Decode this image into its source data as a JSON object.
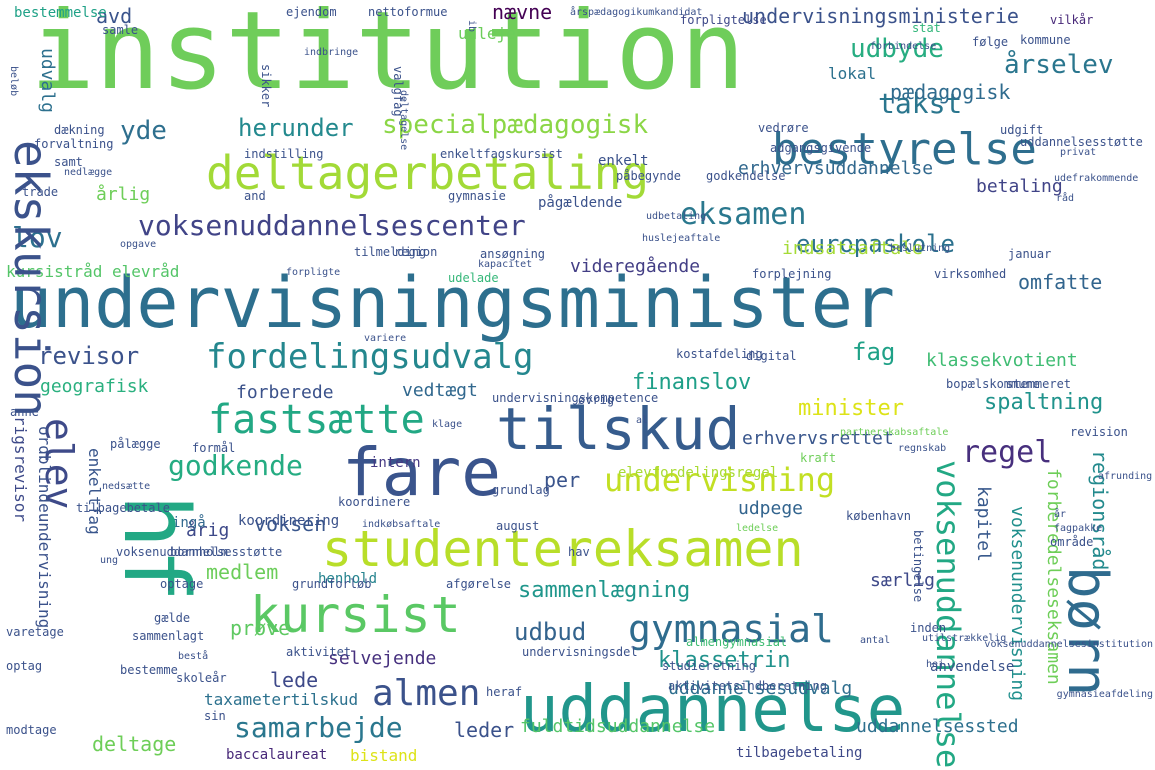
{
  "words": [
    {
      "text": "institution",
      "color": "#6fcd5a"
    },
    {
      "text": "undervisningsminister",
      "color": "#2d6f8e"
    },
    {
      "text": "uddannelse",
      "color": "#21968b"
    },
    {
      "text": "fare",
      "color": "#3a548c"
    },
    {
      "text": "tilskud",
      "color": "#365c8d"
    },
    {
      "text": "studentereksamen",
      "color": "#b8de29"
    },
    {
      "text": "deltagerbetaling",
      "color": "#a2da37"
    },
    {
      "text": "bestyrelse",
      "color": "#2e6e8e"
    },
    {
      "text": "kursist",
      "color": "#5ac864"
    },
    {
      "text": "fastsætte",
      "color": "#22a884"
    },
    {
      "text": "gymnasial",
      "color": "#2f6c8e"
    },
    {
      "text": "fordelingsudvalg",
      "color": "#24878e"
    },
    {
      "text": "voksenuddannelsescenter",
      "color": "#414487"
    },
    {
      "text": "specialpædagogisk",
      "color": "#8bd646"
    },
    {
      "text": "undervisning",
      "color": "#c2df23"
    },
    {
      "text": "almen",
      "color": "#3b528b"
    },
    {
      "text": "eksamen",
      "color": "#2a788e"
    },
    {
      "text": "europaskole",
      "color": "#2c718e"
    },
    {
      "text": "udbyde",
      "color": "#27ad81"
    },
    {
      "text": "årselev",
      "color": "#2a768e"
    },
    {
      "text": "herunder",
      "color": "#23898e"
    },
    {
      "text": "takst",
      "color": "#2a768e"
    },
    {
      "text": "godkende",
      "color": "#25ac82"
    },
    {
      "text": "lov",
      "color": "#2d708e"
    },
    {
      "text": "yde",
      "color": "#2e6f8e"
    },
    {
      "text": "regel",
      "color": "#472f7d"
    },
    {
      "text": "samarbejde",
      "color": "#2a778e"
    },
    {
      "text": "minister",
      "color": "#dde318"
    },
    {
      "text": "finanslov",
      "color": "#1f9f88"
    },
    {
      "text": "revisor",
      "color": "#3b528b"
    },
    {
      "text": "fag",
      "color": "#1fa187"
    },
    {
      "text": "spaltning",
      "color": "#20938c"
    },
    {
      "text": "klassetrin",
      "color": "#20928c"
    },
    {
      "text": "sammenlægning",
      "color": "#1f968b"
    },
    {
      "text": "udbud",
      "color": "#33638d"
    },
    {
      "text": "klassekvotient",
      "color": "#3fbc73"
    },
    {
      "text": "erhvervsrettet",
      "color": "#39568c"
    },
    {
      "text": "geografisk",
      "color": "#2ab07f"
    },
    {
      "text": "undervisningsministerie",
      "color": "#3b528b"
    },
    {
      "text": "erhvervsuddannelse",
      "color": "#31688e"
    },
    {
      "text": "pædagogisk",
      "color": "#2f6b8e"
    },
    {
      "text": "betaling",
      "color": "#414487"
    },
    {
      "text": "indsatsaftale",
      "color": "#a5db36"
    },
    {
      "text": "omfatte",
      "color": "#32658e"
    },
    {
      "text": "videregående",
      "color": "#433e85"
    },
    {
      "text": "kursistråd elevråd",
      "color": "#54c568"
    },
    {
      "text": "vedtægt",
      "color": "#31688e"
    },
    {
      "text": "forberede",
      "color": "#3b528b"
    },
    {
      "text": "medlem",
      "color": "#6ccd5a"
    },
    {
      "text": "voksen",
      "color": "#39568c"
    },
    {
      "text": "årig",
      "color": "#3e4989"
    },
    {
      "text": "per",
      "color": "#3a548c"
    },
    {
      "text": "udpege",
      "color": "#32648e"
    },
    {
      "text": "prøve",
      "color": "#5ec962"
    },
    {
      "text": "selvejende",
      "color": "#46307e"
    },
    {
      "text": "lede",
      "color": "#3e4989"
    },
    {
      "text": "leder",
      "color": "#3b528b"
    },
    {
      "text": "deltage",
      "color": "#6ece58"
    },
    {
      "text": "uddannelsesudvalg",
      "color": "#2e6e8e"
    },
    {
      "text": "fuldtidsuddannelse",
      "color": "#54c568"
    },
    {
      "text": "uddannelsessted",
      "color": "#2d708e"
    },
    {
      "text": "særlig",
      "color": "#3e4989"
    },
    {
      "text": "elevfordelingsregel",
      "color": "#a8db34"
    },
    {
      "text": "ingå",
      "color": "#31688e"
    },
    {
      "text": "koordinering",
      "color": "#3b528b"
    },
    {
      "text": "henhold",
      "color": "#25838e"
    },
    {
      "text": "intern",
      "color": "#443983"
    },
    {
      "text": "udelade",
      "color": "#35b779"
    },
    {
      "text": "region",
      "color": "#3b528b"
    },
    {
      "text": "gymnasie",
      "color": "#3b528b"
    },
    {
      "text": "årlig",
      "color": "#6ece58"
    },
    {
      "text": "udvalg",
      "color": "#2d708e"
    },
    {
      "text": "lokal",
      "color": "#2c718e"
    },
    {
      "text": "nævne",
      "color": "#440154"
    },
    {
      "text": "udleje",
      "color": "#6ccd5a"
    },
    {
      "text": "avd",
      "color": "#3a548c"
    },
    {
      "text": "bestemmelse",
      "color": "#1fa187"
    },
    {
      "text": "ejendom",
      "color": "#3b528b"
    },
    {
      "text": "vilkår",
      "color": "#482979"
    },
    {
      "text": "følge",
      "color": "#3b528b"
    },
    {
      "text": "stat",
      "color": "#32b67a"
    },
    {
      "text": "forpligtelse",
      "color": "#3e4989"
    },
    {
      "text": "kommune",
      "color": "#3b528b"
    },
    {
      "text": "ekskursion",
      "color": "#3b528b"
    },
    {
      "text": "hf",
      "color": "#22a884"
    },
    {
      "text": "børn",
      "color": "#2f6b8e"
    },
    {
      "text": "elev",
      "color": "#3e4a89"
    },
    {
      "text": "voksenuddannelse",
      "color": "#22a884"
    },
    {
      "text": "regionsråd",
      "color": "#238a8d"
    },
    {
      "text": "forberedelseseksamen",
      "color": "#6ece58"
    },
    {
      "text": "voksenundervisning",
      "color": "#21908d"
    },
    {
      "text": "kapitel",
      "color": "#38598c"
    },
    {
      "text": "rigsrevisor",
      "color": "#3e4a89"
    },
    {
      "text": "ordblindeundervisning",
      "color": "#3b528b"
    },
    {
      "text": "enkeltfag",
      "color": "#39568c"
    },
    {
      "text": "taxametertilskud",
      "color": "#2c718e"
    },
    {
      "text": "bistand",
      "color": "#dde318"
    },
    {
      "text": "baccalaureat",
      "color": "#482979"
    },
    {
      "text": "tilbagebetaling",
      "color": "#3e4989"
    },
    {
      "text": "anvendelse",
      "color": "#3b528b"
    },
    {
      "text": "studieretning",
      "color": "#3b528b"
    },
    {
      "text": "aktivitetsindberetning",
      "color": "#3b528b"
    },
    {
      "text": "almengymnasial",
      "color": "#3fbc73"
    },
    {
      "text": "inden",
      "color": "#3b528b"
    },
    {
      "text": "gælde",
      "color": "#3b528b"
    },
    {
      "text": "optage",
      "color": "#3b528b"
    },
    {
      "text": "grundforløb",
      "color": "#3b528b"
    },
    {
      "text": "afgørelse",
      "color": "#3b528b"
    },
    {
      "text": "skoleår",
      "color": "#3b528b"
    },
    {
      "text": "koordinere",
      "color": "#3b528b"
    },
    {
      "text": "tilbagebetale",
      "color": "#3b528b"
    },
    {
      "text": "formål",
      "color": "#3b528b"
    },
    {
      "text": "grundlag",
      "color": "#3b528b"
    },
    {
      "text": "august",
      "color": "#3b528b"
    },
    {
      "text": "hav",
      "color": "#3b528b"
    },
    {
      "text": "københavn",
      "color": "#3b528b"
    },
    {
      "text": "kostafdeling",
      "color": "#3b528b"
    },
    {
      "text": "digital",
      "color": "#3b528b"
    },
    {
      "text": "stemmeret",
      "color": "#3b528b"
    },
    {
      "text": "bopælskommune",
      "color": "#3b528b"
    },
    {
      "text": "øvrig",
      "color": "#3b528b"
    },
    {
      "text": "undervisningskompetence",
      "color": "#3b528b"
    },
    {
      "text": "revision",
      "color": "#3b528b"
    },
    {
      "text": "regnskab",
      "color": "#3b528b"
    },
    {
      "text": "kraft",
      "color": "#6ece58"
    },
    {
      "text": "partnerskabsaftale",
      "color": "#6ece58"
    },
    {
      "text": "afrunding",
      "color": "#3b528b"
    },
    {
      "text": "år",
      "color": "#3b528b"
    },
    {
      "text": "område",
      "color": "#3b528b"
    },
    {
      "text": "fagpakke",
      "color": "#3b528b"
    },
    {
      "text": "ledelse",
      "color": "#6ece58"
    },
    {
      "text": "tilmelding",
      "color": "#3b528b"
    },
    {
      "text": "ansøgning",
      "color": "#3b528b"
    },
    {
      "text": "kapacitet",
      "color": "#3b528b"
    },
    {
      "text": "forplejning",
      "color": "#3b528b"
    },
    {
      "text": "virksomhed",
      "color": "#3b528b"
    },
    {
      "text": "januar",
      "color": "#3b528b"
    },
    {
      "text": "forpligte",
      "color": "#3b528b"
    },
    {
      "text": "huslejeaftale",
      "color": "#3b528b"
    },
    {
      "text": "beslutning",
      "color": "#3b528b"
    },
    {
      "text": "bornholm",
      "color": "#3b528b"
    },
    {
      "text": "indkøbsaftale",
      "color": "#3b528b"
    },
    {
      "text": "nedsætte",
      "color": "#3b528b"
    },
    {
      "text": "pålægge",
      "color": "#3b528b"
    },
    {
      "text": "klage",
      "color": "#3b528b"
    },
    {
      "text": "al",
      "color": "#3b528b"
    },
    {
      "text": "anne",
      "color": "#3b528b"
    },
    {
      "text": "variere",
      "color": "#3b528b"
    },
    {
      "text": "opgave",
      "color": "#3b528b"
    },
    {
      "text": "udbetaling",
      "color": "#3b528b"
    },
    {
      "text": "trade",
      "color": "#3b528b"
    },
    {
      "text": "and",
      "color": "#3b528b"
    },
    {
      "text": "pågældende",
      "color": "#3b528b"
    },
    {
      "text": "godkendelse",
      "color": "#3b528b"
    },
    {
      "text": "påbegynde",
      "color": "#3b528b"
    },
    {
      "text": "enkelt",
      "color": "#3b528b"
    },
    {
      "text": "enkeltfagskursist",
      "color": "#3b528b"
    },
    {
      "text": "indstilling",
      "color": "#3b528b"
    },
    {
      "text": "forvaltning",
      "color": "#3b528b"
    },
    {
      "text": "samt",
      "color": "#3b528b"
    },
    {
      "text": "dækning",
      "color": "#3b528b"
    },
    {
      "text": "nedlægge",
      "color": "#3b528b"
    },
    {
      "text": "vedrøre",
      "color": "#3b528b"
    },
    {
      "text": "adgangsgivende",
      "color": "#3b528b"
    },
    {
      "text": "udgift",
      "color": "#3b528b"
    },
    {
      "text": "uddannelsesstøtte",
      "color": "#3b528b"
    },
    {
      "text": "privat",
      "color": "#3b528b"
    },
    {
      "text": "udefrakommende",
      "color": "#3b528b"
    },
    {
      "text": "råd",
      "color": "#3b528b"
    },
    {
      "text": "samle",
      "color": "#3b528b"
    },
    {
      "text": "nettoformue",
      "color": "#3b528b"
    },
    {
      "text": "årspædagogikumkandidat",
      "color": "#3b528b"
    },
    {
      "text": "indbringe",
      "color": "#3b528b"
    },
    {
      "text": "forbindelse",
      "color": "#3b528b"
    },
    {
      "text": "valgfag",
      "color": "#3b528b"
    },
    {
      "text": "sikker",
      "color": "#3b528b"
    },
    {
      "text": "ib",
      "color": "#3b528b"
    },
    {
      "text": "beløb",
      "color": "#3b528b"
    },
    {
      "text": "deltagelse",
      "color": "#3b528b"
    },
    {
      "text": "betingelse",
      "color": "#3b528b"
    },
    {
      "text": "voksenuddannelsesinstitution",
      "color": "#3b528b"
    },
    {
      "text": "gymnasieafdeling",
      "color": "#3b528b"
    },
    {
      "text": "utilstrækkelig",
      "color": "#3b528b"
    },
    {
      "text": "antal",
      "color": "#3b528b"
    },
    {
      "text": "hej",
      "color": "#3b528b"
    },
    {
      "text": "modtage",
      "color": "#3b528b"
    },
    {
      "text": "optag",
      "color": "#3b528b"
    },
    {
      "text": "varetage",
      "color": "#3b528b"
    },
    {
      "text": "sammenlagt",
      "color": "#3b528b"
    },
    {
      "text": "sin",
      "color": "#3b528b"
    },
    {
      "text": "bestå",
      "color": "#3b528b"
    },
    {
      "text": "heraf",
      "color": "#3b528b"
    },
    {
      "text": "undervisningsdel",
      "color": "#3b528b"
    },
    {
      "text": "aktivitet",
      "color": "#3b528b"
    },
    {
      "text": "bestemme",
      "color": "#3b528b"
    },
    {
      "text": "voksenuddannelsesstøtte",
      "color": "#3b528b"
    },
    {
      "text": "ung",
      "color": "#3b528b"
    },
    {
      "text": "opgørelse",
      "color": "#3b528b"
    },
    {
      "text": "sankt",
      "color": "#3b528b"
    },
    {
      "text": "heron",
      "color": "#3b528b"
    }
  ]
}
